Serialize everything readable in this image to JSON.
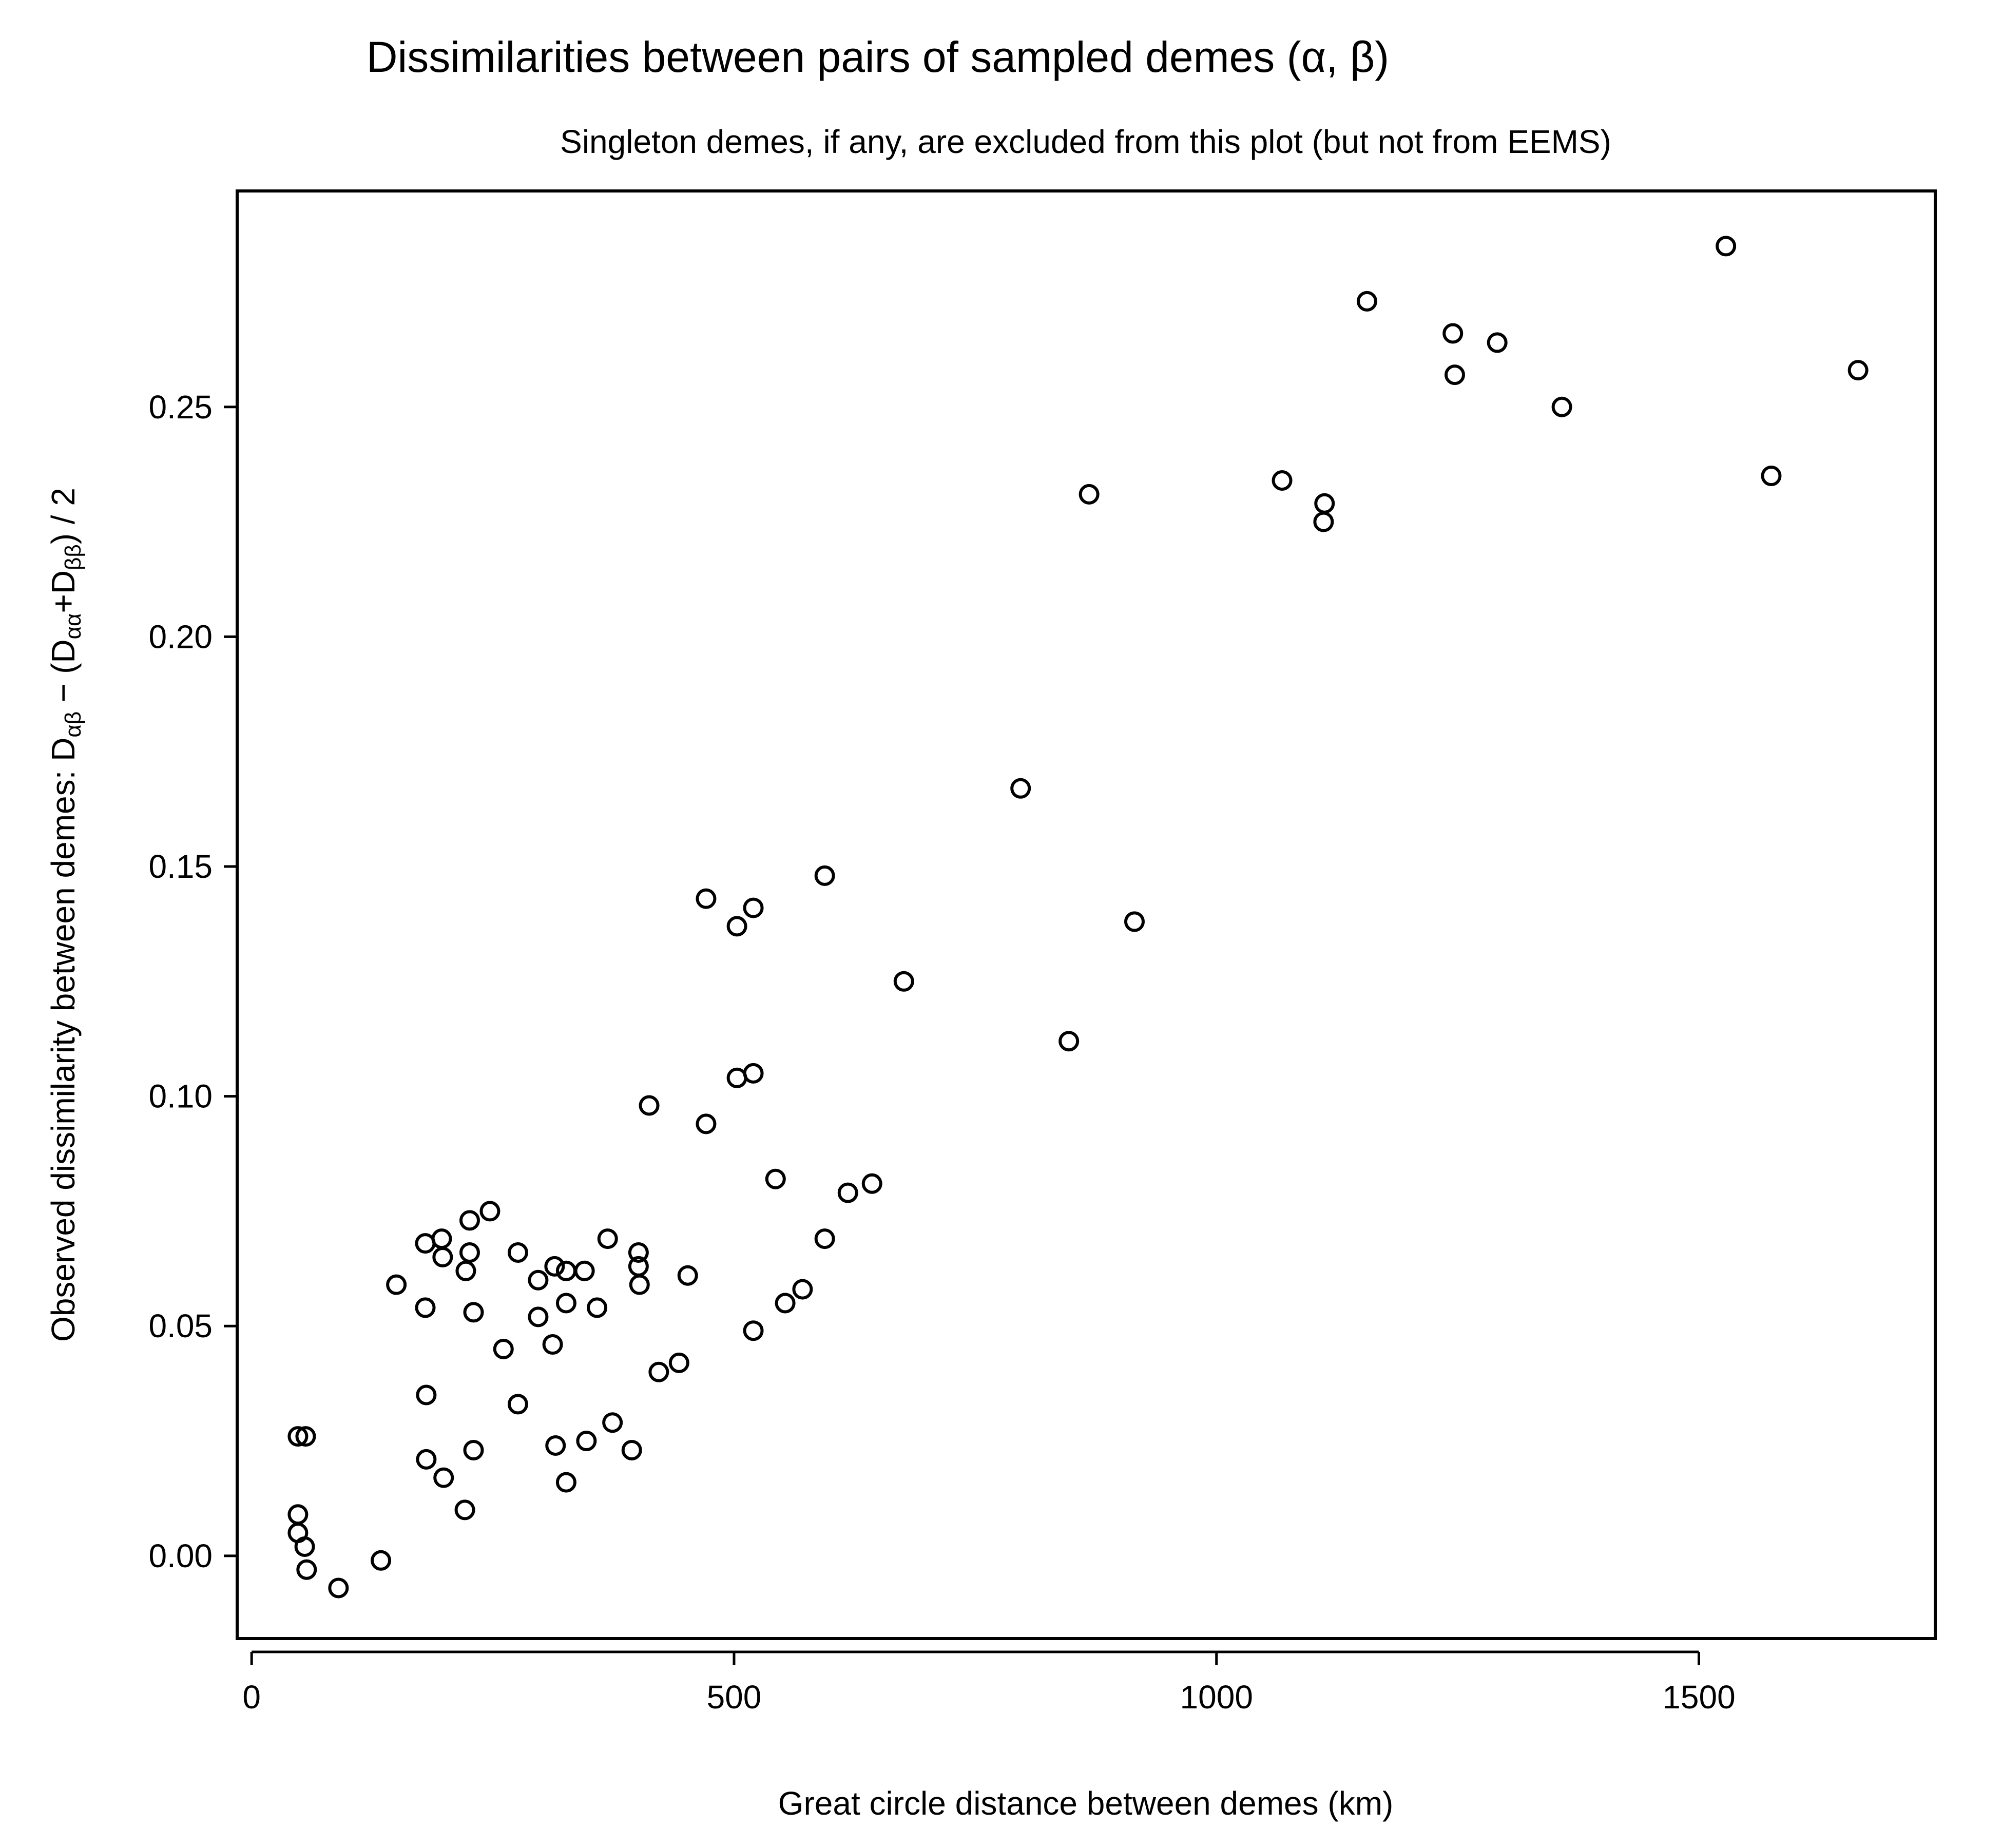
{
  "chart_data": {
    "type": "scatter",
    "title": "Dissimilarities between pairs of sampled demes (α, β)",
    "subtitle": "Singleton demes, if any, are excluded from this plot (but not from EEMS)",
    "xlabel": "Great circle distance between demes (km)",
    "ylabel": {
      "prefix": "Observed dissimilarity between demes:   D",
      "sub1": "αβ",
      "mid1": " − (D",
      "sub2": "αα",
      "mid2": "+D",
      "sub3": "ββ",
      "suffix": ") / 2"
    },
    "xlim": [
      -15,
      1745
    ],
    "ylim": [
      -0.018,
      0.297
    ],
    "x_ticks": [
      0,
      500,
      1000,
      1500
    ],
    "x_tick_labels": [
      "0",
      "500",
      "1000",
      "1500"
    ],
    "y_ticks": [
      0.0,
      0.05,
      0.1,
      0.15,
      0.2,
      0.25
    ],
    "y_tick_labels": [
      "0.00",
      "0.05",
      "0.10",
      "0.15",
      "0.20",
      "0.25"
    ],
    "grid": false,
    "points": [
      [
        48,
        0.026
      ],
      [
        56,
        0.026
      ],
      [
        48,
        0.009
      ],
      [
        48,
        0.005
      ],
      [
        55,
        0.002
      ],
      [
        57,
        -0.003
      ],
      [
        90,
        -0.007
      ],
      [
        134,
        -0.001
      ],
      [
        150,
        0.059
      ],
      [
        180,
        0.068
      ],
      [
        180,
        0.054
      ],
      [
        181,
        0.035
      ],
      [
        181,
        0.021
      ],
      [
        197,
        0.069
      ],
      [
        198,
        0.065
      ],
      [
        199,
        0.017
      ],
      [
        222,
        0.062
      ],
      [
        226,
        0.073
      ],
      [
        226,
        0.066
      ],
      [
        230,
        0.053
      ],
      [
        230,
        0.023
      ],
      [
        221,
        0.01
      ],
      [
        247,
        0.075
      ],
      [
        261,
        0.045
      ],
      [
        276,
        0.066
      ],
      [
        276,
        0.033
      ],
      [
        297,
        0.06
      ],
      [
        297,
        0.052
      ],
      [
        312,
        0.046
      ],
      [
        314,
        0.063
      ],
      [
        315,
        0.024
      ],
      [
        326,
        0.062
      ],
      [
        326,
        0.055
      ],
      [
        326,
        0.016
      ],
      [
        345,
        0.062
      ],
      [
        347,
        0.025
      ],
      [
        358,
        0.054
      ],
      [
        369,
        0.069
      ],
      [
        374,
        0.029
      ],
      [
        394,
        0.023
      ],
      [
        401,
        0.066
      ],
      [
        401,
        0.063
      ],
      [
        402,
        0.059
      ],
      [
        412,
        0.098
      ],
      [
        422,
        0.04
      ],
      [
        443,
        0.042
      ],
      [
        452,
        0.061
      ],
      [
        471,
        0.143
      ],
      [
        471,
        0.094
      ],
      [
        503,
        0.137
      ],
      [
        503,
        0.104
      ],
      [
        520,
        0.141
      ],
      [
        520,
        0.105
      ],
      [
        520,
        0.049
      ],
      [
        543,
        0.082
      ],
      [
        553,
        0.055
      ],
      [
        571,
        0.058
      ],
      [
        594,
        0.148
      ],
      [
        594,
        0.069
      ],
      [
        618,
        0.079
      ],
      [
        643,
        0.081
      ],
      [
        676,
        0.125
      ],
      [
        797,
        0.167
      ],
      [
        847,
        0.112
      ],
      [
        868,
        0.231
      ],
      [
        915,
        0.138
      ],
      [
        1068,
        0.234
      ],
      [
        1112,
        0.229
      ],
      [
        1111,
        0.225
      ],
      [
        1156,
        0.273
      ],
      [
        1245,
        0.266
      ],
      [
        1247,
        0.257
      ],
      [
        1291,
        0.264
      ],
      [
        1358,
        0.25
      ],
      [
        1528,
        0.285
      ],
      [
        1575,
        0.235
      ],
      [
        1665,
        0.258
      ]
    ]
  }
}
